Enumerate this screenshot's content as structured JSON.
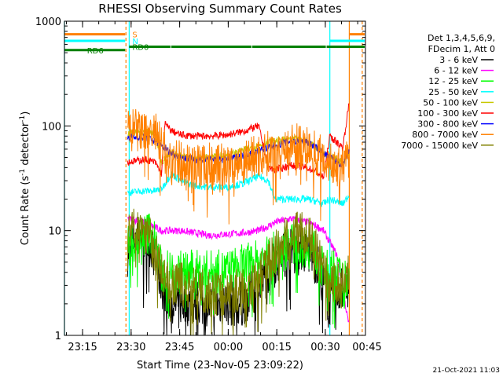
{
  "chart_data": {
    "type": "line",
    "title": "RHESSI Observing Summary Count Rates",
    "xlabel": "Start Time (23-Nov-05 23:09:22)",
    "ylabel_main": "Count Rate (s",
    "ylabel_sup1": "-1",
    "ylabel_mid": " detector",
    "ylabel_sup2": "-1",
    "ylabel_end": ")",
    "y_scale": "log",
    "ylim": [
      1,
      1000
    ],
    "xlim_minutes": [
      0,
      93
    ],
    "x_start_time": "23:09:22",
    "grid": false,
    "legend_placement": "right",
    "x_ticks": [
      {
        "label": "23:15",
        "t": 5.6
      },
      {
        "label": "23:30",
        "t": 20.6
      },
      {
        "label": "23:45",
        "t": 35.6
      },
      {
        "label": "00:00",
        "t": 50.6
      },
      {
        "label": "00:15",
        "t": 65.6
      },
      {
        "label": "00:30",
        "t": 80.6
      },
      {
        "label": "00:45",
        "t": 95.6
      }
    ],
    "y_ticks": [
      {
        "label": "1",
        "v": 1
      },
      {
        "label": "10",
        "v": 10
      },
      {
        "label": "100",
        "v": 100
      },
      {
        "label": "1000",
        "v": 1000
      }
    ],
    "legend_header": [
      "Det 1,3,4,5,6,9,",
      "FDecim 1, Att 0"
    ],
    "series": [
      {
        "name": "3 - 6 keV",
        "color": "#000000",
        "t": [
          19.5,
          22,
          25,
          27,
          30,
          33,
          36,
          40,
          45,
          50,
          55,
          60,
          63,
          65,
          68,
          72,
          76,
          78,
          80,
          82,
          86,
          88
        ],
        "values": [
          6,
          9,
          8,
          7,
          3,
          2,
          2,
          2,
          2,
          2,
          2,
          3,
          4,
          5,
          6,
          7,
          6,
          5,
          3,
          2,
          3,
          3
        ]
      },
      {
        "name": "6 - 12 keV",
        "color": "#ff00ff",
        "t": [
          19.5,
          25,
          30,
          36,
          45,
          55,
          60,
          63,
          65,
          70,
          75,
          78,
          80,
          84,
          88
        ],
        "values": [
          13,
          12,
          10,
          10,
          9,
          9.5,
          10,
          11,
          12,
          13,
          12,
          11,
          10,
          6,
          1.2
        ]
      },
      {
        "name": "12 - 25 keV",
        "color": "#00ff00",
        "t": [
          19.5,
          22,
          25,
          27,
          30,
          36,
          45,
          50,
          55,
          60,
          63,
          65,
          68,
          72,
          76,
          78,
          80,
          84,
          86,
          88
        ],
        "values": [
          7,
          8,
          9,
          10,
          4,
          4,
          4,
          4,
          4.5,
          5,
          5.5,
          6,
          7,
          7.5,
          7,
          6,
          4,
          4,
          3,
          4
        ]
      },
      {
        "name": "25 - 50 keV",
        "color": "#00ffff",
        "t": [
          19.5,
          25,
          28,
          30,
          33,
          36,
          40,
          45,
          50,
          55,
          60,
          63,
          65,
          70,
          75,
          78,
          80,
          82,
          86,
          88
        ],
        "values": [
          23,
          24,
          24,
          25,
          35,
          30,
          27,
          26,
          26,
          28,
          33,
          30,
          20,
          20,
          20,
          19,
          18,
          20,
          18,
          22
        ]
      },
      {
        "name": "50 - 100 keV",
        "color": "#c8c800",
        "t": [
          19.5,
          25,
          28,
          30,
          33,
          36,
          40,
          45,
          50,
          55,
          60,
          63,
          65,
          70,
          75,
          78,
          80,
          82,
          86,
          88
        ],
        "values": [
          85,
          88,
          85,
          45,
          55,
          52,
          50,
          50,
          52,
          58,
          65,
          70,
          72,
          75,
          72,
          62,
          55,
          52,
          45,
          55
        ]
      },
      {
        "name": "100 - 300 keV",
        "color": "#ff0000",
        "t": [
          19.5,
          25,
          28,
          30,
          31,
          33,
          36,
          40,
          45,
          50,
          55,
          60,
          63,
          65,
          70,
          75,
          78,
          80,
          82,
          86,
          88
        ],
        "values": [
          45,
          48,
          45,
          35,
          105,
          90,
          82,
          80,
          80,
          82,
          88,
          100,
          40,
          38,
          42,
          40,
          36,
          32,
          80,
          62,
          170
        ]
      },
      {
        "name": "300 - 800 keV",
        "color": "#0000ff",
        "t": [
          19.5,
          25,
          28,
          30,
          33,
          36,
          40,
          45,
          50,
          55,
          60,
          63,
          65,
          70,
          75,
          78,
          80,
          82,
          86,
          88
        ],
        "values": [
          78,
          78,
          72,
          65,
          55,
          50,
          48,
          47,
          48,
          52,
          58,
          62,
          65,
          72,
          70,
          62,
          55,
          50,
          42,
          60
        ]
      },
      {
        "name": "800 - 7000 keV",
        "color": "#ff8000",
        "t": [
          19.5,
          25,
          28,
          30,
          33,
          36,
          40,
          45,
          50,
          55,
          60,
          63,
          65,
          70,
          75,
          78,
          80,
          82,
          86,
          88
        ],
        "values": [
          90,
          88,
          85,
          60,
          48,
          44,
          42,
          42,
          43,
          47,
          52,
          55,
          60,
          66,
          62,
          55,
          50,
          45,
          38,
          50
        ]
      },
      {
        "name": "7000 - 15000 keV",
        "color": "#808000",
        "t": [
          19.5,
          22,
          25,
          27,
          30,
          33,
          36,
          40,
          45,
          50,
          55,
          60,
          63,
          65,
          68,
          72,
          76,
          78,
          80,
          82,
          86,
          88
        ],
        "values": [
          10,
          11,
          10,
          8,
          4,
          3,
          3,
          2.8,
          2.5,
          2.5,
          2.8,
          3.5,
          5,
          6,
          8,
          10,
          8,
          6,
          4,
          3,
          3,
          4
        ]
      }
    ],
    "flags": [
      {
        "name": "S",
        "color": "#ff8000",
        "label_t": 20,
        "segments": [
          [
            0,
            19
          ],
          [
            88,
            93
          ]
        ],
        "value": 750
      },
      {
        "name": "N",
        "color": "#00ffff",
        "label_t": 20,
        "segments": [
          [
            0,
            19
          ],
          [
            82,
            93
          ]
        ],
        "value": 650
      },
      {
        "name": "RD0",
        "color": "#008000",
        "label_t": 20,
        "segments": [
          [
            20,
            33
          ],
          [
            33,
            58
          ],
          [
            58,
            81
          ],
          [
            81,
            93
          ]
        ],
        "value": 570
      },
      {
        "name": "RD6",
        "color": "#008000",
        "label_t": 6,
        "segments": [
          [
            0,
            19
          ]
        ],
        "value": 530
      }
    ],
    "verticals": [
      {
        "t": 0,
        "color": "#00ffff",
        "dashed": false
      },
      {
        "t": 19,
        "color": "#ff8000",
        "dashed": true
      },
      {
        "t": 20,
        "color": "#00ffff",
        "dashed": false
      },
      {
        "t": 82,
        "color": "#00ffff",
        "dashed": false
      },
      {
        "t": 88,
        "color": "#ff8000",
        "dashed": false
      },
      {
        "t": 92,
        "color": "#ff8000",
        "dashed": true
      }
    ],
    "footer": "21-Oct-2021 11:03"
  }
}
